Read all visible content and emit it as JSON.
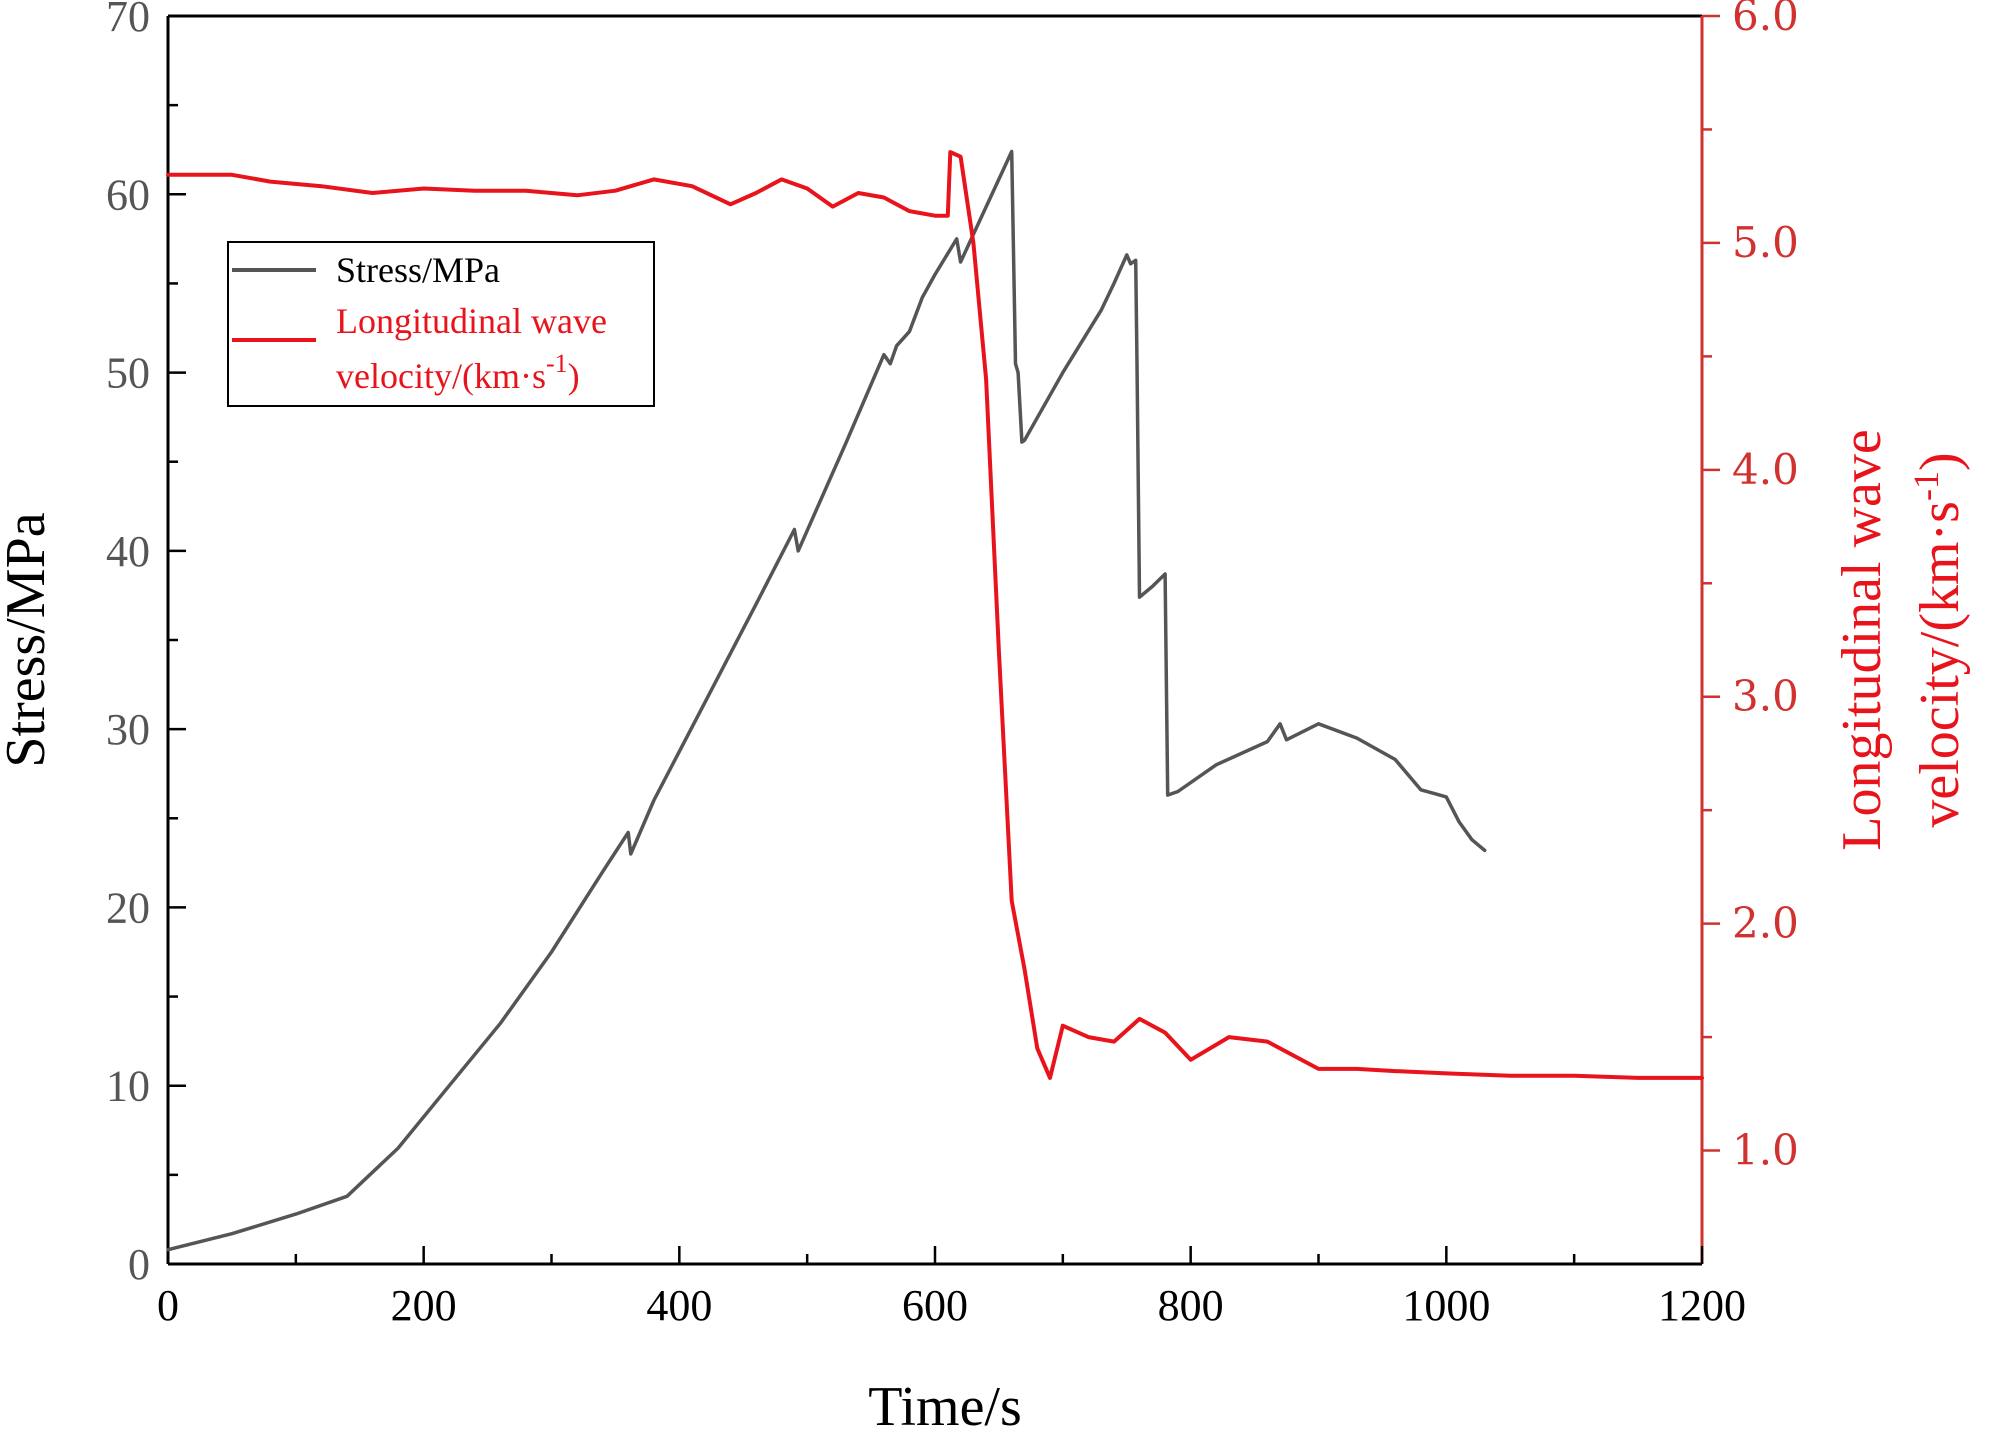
{
  "chart_data": {
    "type": "line",
    "x_axis": {
      "label": "Time/s",
      "range": [
        0,
        1200
      ],
      "ticks": [
        "0",
        "200",
        "400",
        "600",
        "800",
        "1000",
        "1200"
      ]
    },
    "y_left": {
      "label": "Stress/MPa",
      "range": [
        0,
        70
      ],
      "ticks": [
        "0",
        "10",
        "20",
        "30",
        "40",
        "50",
        "60",
        "70"
      ]
    },
    "y_right": {
      "label_line1": "Longitudinal wave",
      "label_line2": "velocity/(km·s",
      "label_sup": "-1",
      "label_close": ")",
      "range": [
        0.5,
        6.0
      ],
      "ticks": [
        "1.0",
        "2.0",
        "3.0",
        "4.0",
        "5.0",
        "6.0"
      ]
    },
    "legend": {
      "position": "top-left",
      "entries": [
        {
          "line1": "Stress/MPa",
          "color": "#555555"
        },
        {
          "line1": "Longitudinal wave",
          "line2": "velocity/(km·s",
          "sup": "-1",
          "close": ")",
          "color": "#e8131b"
        }
      ]
    },
    "series": [
      {
        "name": "Stress/MPa",
        "axis": "left",
        "color": "#555555",
        "x": [
          0,
          50,
          100,
          140,
          180,
          220,
          260,
          300,
          340,
          360,
          362,
          380,
          420,
          460,
          490,
          493,
          530,
          560,
          565,
          570,
          580,
          590,
          600,
          617,
          620,
          660,
          663,
          665,
          668,
          670,
          700,
          730,
          740,
          750,
          753,
          757,
          758,
          760,
          770,
          780,
          782,
          790,
          820,
          860,
          870,
          875,
          900,
          930,
          960,
          980,
          990,
          1000,
          1010,
          1020,
          1030
        ],
        "y": [
          0.8,
          1.7,
          2.8,
          3.8,
          6.5,
          10,
          13.5,
          17.5,
          22,
          24.2,
          23,
          26,
          31.5,
          37,
          41.2,
          40,
          46,
          51,
          50.5,
          51.5,
          52.3,
          54.2,
          55.5,
          57.5,
          56.2,
          62.4,
          50.5,
          50,
          46.1,
          46.2,
          50,
          53.5,
          55,
          56.6,
          56.1,
          56.3,
          50.5,
          37.4,
          38,
          38.7,
          26.3,
          26.5,
          28,
          29.3,
          30.3,
          29.4,
          30.3,
          29.5,
          28.3,
          26.6,
          26.4,
          26.2,
          24.8,
          23.8,
          23.2
        ]
      },
      {
        "name": "Longitudinal wave velocity/(km·s-1)",
        "axis": "right",
        "color": "#e8131b",
        "x": [
          0,
          20,
          50,
          80,
          120,
          160,
          200,
          240,
          280,
          320,
          350,
          380,
          410,
          440,
          460,
          480,
          500,
          520,
          540,
          560,
          580,
          600,
          610,
          612,
          620,
          630,
          640,
          650,
          660,
          670,
          680,
          690,
          700,
          720,
          740,
          760,
          780,
          800,
          830,
          860,
          900,
          930,
          960,
          1000,
          1050,
          1100,
          1150,
          1200
        ],
        "y": [
          5.3,
          5.3,
          5.3,
          5.27,
          5.25,
          5.22,
          5.24,
          5.23,
          5.23,
          5.21,
          5.23,
          5.28,
          5.25,
          5.17,
          5.22,
          5.28,
          5.24,
          5.16,
          5.22,
          5.2,
          5.14,
          5.12,
          5.12,
          5.4,
          5.38,
          5.0,
          4.4,
          3.2,
          2.1,
          1.8,
          1.45,
          1.32,
          1.55,
          1.5,
          1.48,
          1.58,
          1.52,
          1.4,
          1.5,
          1.48,
          1.36,
          1.36,
          1.35,
          1.34,
          1.33,
          1.33,
          1.32,
          1.32
        ]
      }
    ]
  }
}
